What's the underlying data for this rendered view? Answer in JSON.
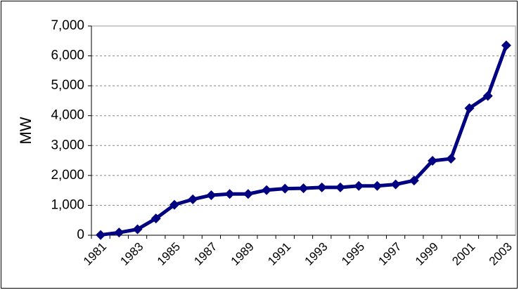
{
  "chart_data": {
    "type": "line",
    "y_label": "MW",
    "categories": [
      "1981",
      null,
      "1983",
      null,
      "1985",
      null,
      "1987",
      null,
      "1989",
      null,
      "1991",
      null,
      "1993",
      null,
      "1995",
      null,
      "1997",
      null,
      "1999",
      null,
      "2001",
      null,
      "2003"
    ],
    "series": [
      {
        "name": "MW",
        "color": "#000080",
        "values": [
          10,
          90,
          200,
          560,
          1020,
          1200,
          1340,
          1380,
          1380,
          1510,
          1560,
          1570,
          1600,
          1600,
          1650,
          1650,
          1700,
          1830,
          2490,
          2560,
          4250,
          4660,
          6350
        ]
      }
    ],
    "ylim": [
      0,
      7000
    ],
    "yticks": [
      0,
      {
        "value": 1000,
        "label": "1,000"
      },
      {
        "value": 2000,
        "label": "2,000"
      },
      {
        "value": 3000,
        "label": "3,000"
      },
      {
        "value": 4000,
        "label": "4,000"
      },
      {
        "value": 5000,
        "label": "5,000"
      },
      {
        "value": 6000,
        "label": "6,000"
      },
      {
        "value": 7000,
        "label": "7,000"
      }
    ],
    "grid": true
  }
}
